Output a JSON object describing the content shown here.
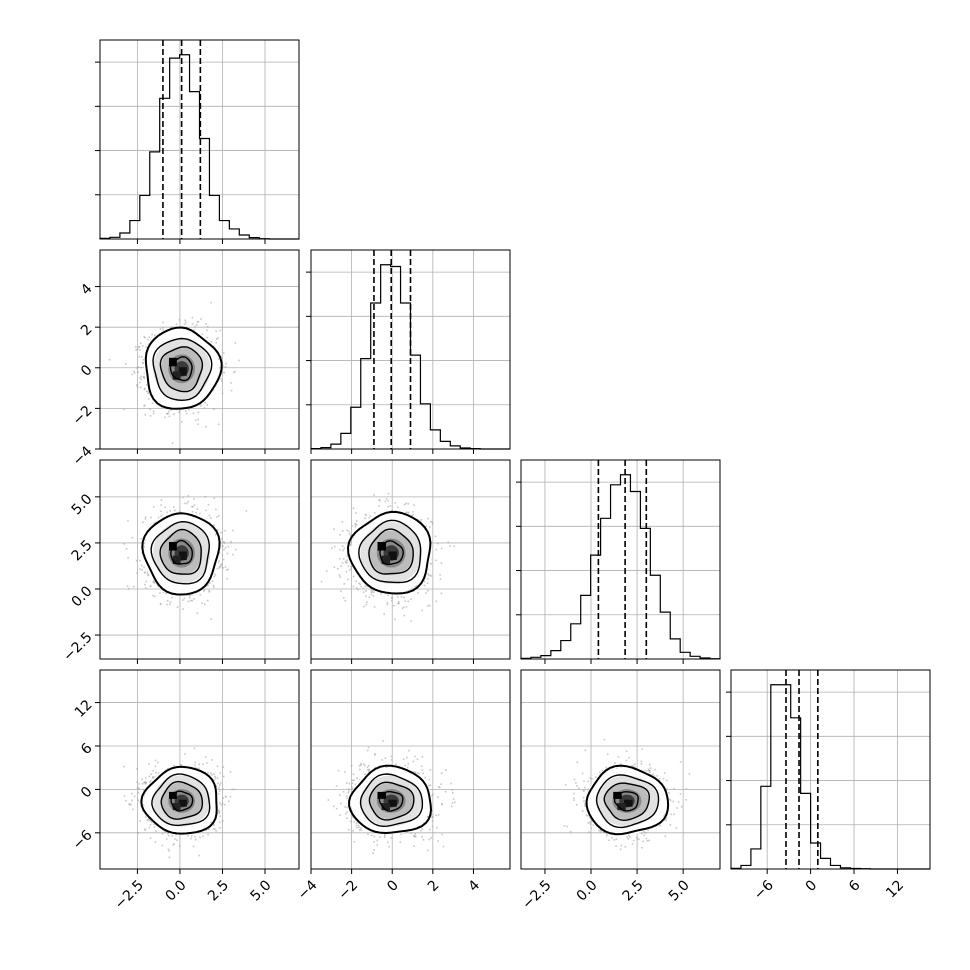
{
  "chart_data": {
    "type": "corner",
    "description_free": true,
    "parameters": [
      {
        "index": 0,
        "range": [
          -4.7,
          7.0
        ],
        "ticks": [
          -2.5,
          0.0,
          2.5,
          5.0
        ],
        "tick_labels": [
          "−2.5",
          "0.0",
          "2.5",
          "5.0"
        ],
        "mean": 0.1,
        "sigma": 1.05,
        "quantiles": [
          -1.0,
          0.1,
          1.2
        ]
      },
      {
        "index": 1,
        "range": [
          -4.0,
          5.8
        ],
        "ticks": [
          -4,
          -2,
          0,
          2,
          4
        ],
        "tick_labels": [
          "−4",
          "−2",
          "0",
          "2",
          "4"
        ],
        "mean": -0.05,
        "sigma": 0.95,
        "quantiles": [
          -0.9,
          -0.05,
          0.9
        ]
      },
      {
        "index": 2,
        "range": [
          -3.8,
          7.0
        ],
        "ticks": [
          -2.5,
          0.0,
          2.5,
          5.0
        ],
        "tick_labels": [
          "−2.5",
          "0.0",
          "2.5",
          "5.0"
        ],
        "mean": 1.95,
        "sigma": 1.05,
        "quantiles": [
          0.4,
          1.85,
          3.0
        ]
      },
      {
        "index": 3,
        "range": [
          -11.0,
          16.5
        ],
        "ticks": [
          -6,
          0,
          6,
          12
        ],
        "tick_labels": [
          "−6",
          "0",
          "6",
          "12"
        ],
        "mean": -1.6,
        "sigma": 2.2,
        "quantiles": [
          -3.4,
          -1.6,
          1.0
        ]
      }
    ],
    "histograms": [
      {
        "param": 0,
        "bins_edges": [
          -4.7,
          -4.115,
          -3.53,
          -2.945,
          -2.36,
          -1.775,
          -1.19,
          -0.605,
          -0.02,
          0.565,
          1.15,
          1.735,
          2.32,
          2.905,
          3.49,
          4.075,
          4.66,
          5.245,
          5.83,
          6.415,
          7.0
        ],
        "counts": [
          2,
          5,
          18,
          55,
          130,
          260,
          420,
          540,
          550,
          440,
          300,
          130,
          55,
          30,
          12,
          4,
          1,
          0,
          0,
          0
        ]
      },
      {
        "param": 1,
        "bins_edges": [
          -4.0,
          -3.51,
          -3.02,
          -2.53,
          -2.04,
          -1.55,
          -1.06,
          -0.57,
          -0.08,
          0.41,
          0.9,
          1.39,
          1.88,
          2.37,
          2.86,
          3.35,
          3.84,
          4.33,
          4.82,
          5.31,
          5.8
        ],
        "counts": [
          1,
          4,
          14,
          45,
          120,
          260,
          420,
          530,
          525,
          420,
          270,
          130,
          55,
          22,
          9,
          3,
          1,
          0,
          0,
          0
        ]
      },
      {
        "param": 2,
        "bins_edges": [
          -3.8,
          -3.26,
          -2.72,
          -2.18,
          -1.64,
          -1.1,
          -0.56,
          -0.02,
          0.52,
          1.06,
          1.6,
          2.14,
          2.68,
          3.22,
          3.76,
          4.3,
          4.84,
          5.38,
          5.92,
          6.46,
          7.0
        ],
        "counts": [
          2,
          5,
          10,
          25,
          55,
          105,
          190,
          310,
          420,
          520,
          550,
          500,
          390,
          250,
          140,
          60,
          20,
          8,
          3,
          1
        ]
      },
      {
        "param": 3,
        "bins_edges": [
          -11.0,
          -9.625,
          -8.25,
          -6.875,
          -5.5,
          -4.125,
          -2.75,
          -1.375,
          0.0,
          1.375,
          2.75,
          4.125,
          5.5,
          6.875,
          8.25,
          9.625,
          11.0,
          12.375,
          13.75,
          15.125,
          16.5
        ],
        "counts": [
          3,
          15,
          85,
          350,
          780,
          780,
          640,
          320,
          110,
          45,
          15,
          5,
          2,
          1,
          0,
          0,
          0,
          0,
          0,
          0
        ]
      }
    ],
    "grid": true
  }
}
